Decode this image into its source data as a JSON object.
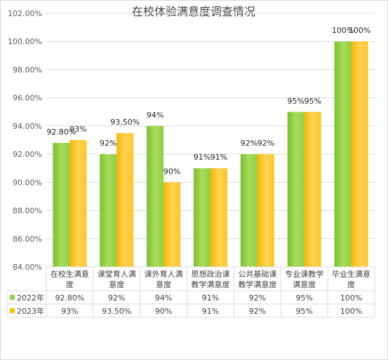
{
  "chart_data": {
    "type": "bar",
    "title": "在校体验满意度调查情况",
    "categories": [
      [
        "在校生满意",
        "度"
      ],
      [
        "课堂育人满",
        "意度"
      ],
      [
        "课外育人满",
        "意度"
      ],
      [
        "思想政治课",
        "教学满意度"
      ],
      [
        "公共基础课",
        "教学满意度"
      ],
      [
        "专业课教学",
        "满意度"
      ],
      [
        "毕业生满意",
        "度"
      ]
    ],
    "series": [
      {
        "name": "2022年",
        "values": [
          92.8,
          92,
          94,
          91,
          92,
          95,
          100
        ],
        "labels": [
          "92.80%",
          "92%",
          "94%",
          "91%",
          "92%",
          "95%",
          "100%"
        ],
        "color": "#92D050"
      },
      {
        "name": "2023年",
        "values": [
          93,
          93.5,
          90,
          91,
          92,
          95,
          100
        ],
        "labels": [
          "93%",
          "93.50%",
          "90%",
          "91%",
          "92%",
          "95%",
          "100%"
        ],
        "color": "#FFC000"
      }
    ],
    "ylim": [
      84,
      102
    ],
    "yticks": [
      "84.00%",
      "86.00%",
      "88.00%",
      "90.00%",
      "92.00%",
      "94.00%",
      "96.00%",
      "98.00%",
      "100.00%",
      "102.00%"
    ],
    "grid": true,
    "legend": "data-table"
  }
}
